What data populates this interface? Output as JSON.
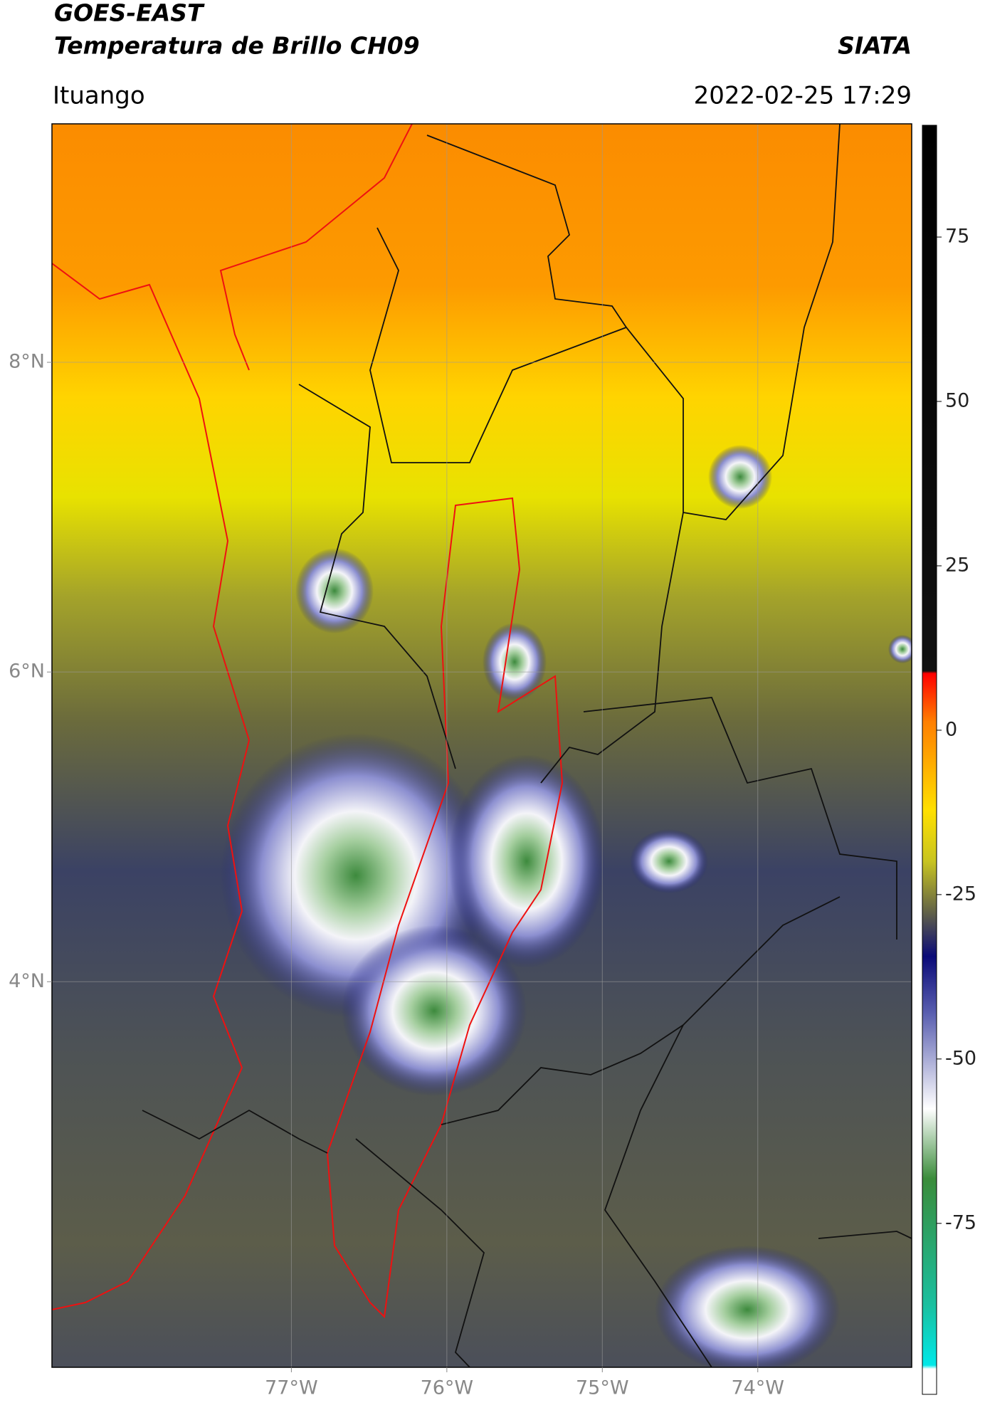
{
  "chart_data": {
    "type": "map",
    "title": "GOES-EAST",
    "subtitle": "Temperatura de Brillo CH09",
    "source": "SIATA",
    "region": "Ituango",
    "timestamp": "2022-02-25 17:29",
    "xlim": [
      -78.54,
      -73.01
    ],
    "ylim": [
      1.51,
      9.54
    ],
    "xticks": [
      {
        "value": -77,
        "label": "77°W"
      },
      {
        "value": -76,
        "label": "76°W"
      },
      {
        "value": -75,
        "label": "75°W"
      },
      {
        "value": -74,
        "label": "74°W"
      }
    ],
    "yticks": [
      {
        "value": 4,
        "label": "4°N"
      },
      {
        "value": 6,
        "label": "6°N"
      },
      {
        "value": 8,
        "label": "8°N"
      }
    ],
    "grid": true,
    "colorbar": {
      "lim": [
        -101,
        92
      ],
      "ticks": [
        75,
        50,
        25,
        0,
        -25,
        -50,
        -75
      ]
    }
  }
}
